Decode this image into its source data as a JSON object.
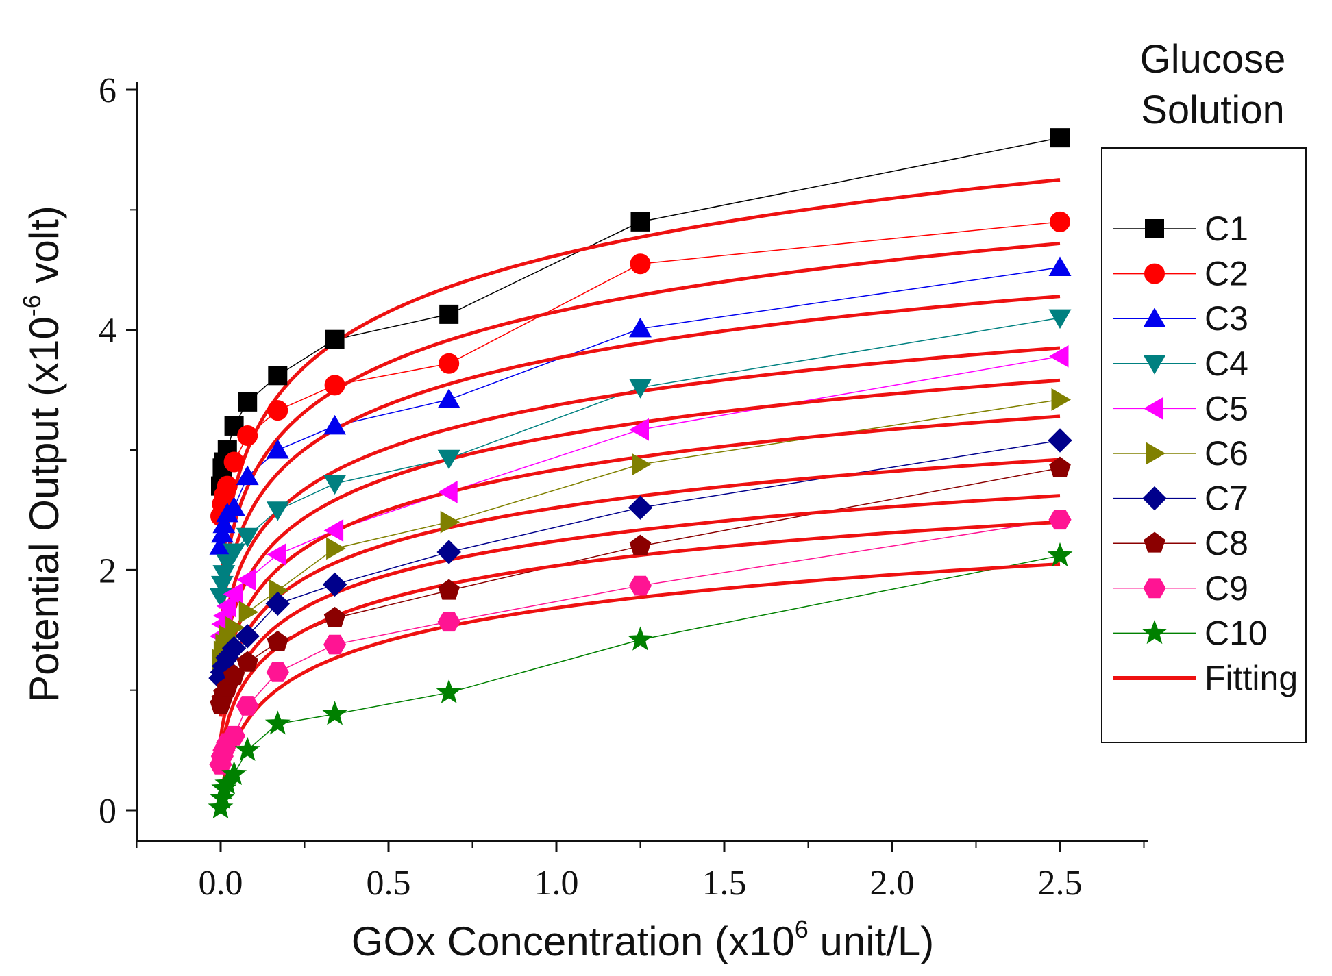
{
  "chart_data": {
    "type": "line",
    "xlabel_main": "GOx Concentration (x10",
    "xlabel_sup": "6",
    "xlabel_tail": " unit/L)",
    "ylabel_main": "Potential Output (x10",
    "ylabel_sup": "-6",
    "ylabel_tail": " volt)",
    "xlim": [
      -0.25,
      2.75
    ],
    "ylim": [
      -0.25,
      6.25
    ],
    "x_ticks": [
      0.0,
      0.5,
      1.0,
      1.5,
      2.0,
      2.5
    ],
    "x_tick_labels": [
      "0.0",
      "0.5",
      "1.0",
      "1.5",
      "2.0",
      "2.5"
    ],
    "y_ticks": [
      0,
      2,
      4,
      6
    ],
    "y_tick_labels": [
      "0",
      "2",
      "4",
      "6"
    ],
    "legend_title_line1": "Glucose",
    "legend_title_line2": "Solution",
    "legend_position": "right",
    "fitting_label": "Fitting",
    "fitting_color": "#ee1111",
    "x": [
      0.0,
      0.005,
      0.01,
      0.02,
      0.04,
      0.08,
      0.17,
      0.34,
      0.68,
      1.25,
      2.5
    ],
    "series": [
      {
        "name": "C1",
        "marker": "square",
        "color": "#000000",
        "values": [
          2.7,
          2.85,
          2.9,
          3.0,
          3.2,
          3.4,
          3.62,
          3.92,
          4.13,
          4.9,
          5.6
        ]
      },
      {
        "name": "C2",
        "marker": "circle",
        "color": "#ff0000",
        "values": [
          2.45,
          2.55,
          2.62,
          2.7,
          2.9,
          3.12,
          3.33,
          3.54,
          3.72,
          4.55,
          4.9
        ]
      },
      {
        "name": "C3",
        "marker": "triangle-up",
        "color": "#0000ee",
        "values": [
          2.2,
          2.3,
          2.38,
          2.47,
          2.52,
          2.78,
          3.0,
          3.2,
          3.42,
          4.01,
          4.52
        ]
      },
      {
        "name": "C4",
        "marker": "triangle-down",
        "color": "#008080",
        "values": [
          1.78,
          1.88,
          1.97,
          2.06,
          2.15,
          2.28,
          2.5,
          2.72,
          2.93,
          3.52,
          4.1
        ]
      },
      {
        "name": "C5",
        "marker": "triangle-left",
        "color": "#ff00ff",
        "values": [
          1.45,
          1.55,
          1.62,
          1.7,
          1.8,
          1.92,
          2.13,
          2.33,
          2.65,
          3.17,
          3.78
        ]
      },
      {
        "name": "C6",
        "marker": "triangle-right",
        "color": "#808000",
        "values": [
          1.25,
          1.32,
          1.38,
          1.45,
          1.52,
          1.65,
          1.83,
          2.18,
          2.4,
          2.88,
          3.42
        ]
      },
      {
        "name": "C7",
        "marker": "diamond",
        "color": "#00008b",
        "values": [
          1.1,
          1.15,
          1.2,
          1.27,
          1.35,
          1.45,
          1.72,
          1.88,
          2.15,
          2.52,
          3.08
        ]
      },
      {
        "name": "C8",
        "marker": "pentagon",
        "color": "#8b0000",
        "values": [
          0.88,
          0.92,
          0.97,
          1.02,
          1.12,
          1.23,
          1.4,
          1.6,
          1.83,
          2.2,
          2.85
        ]
      },
      {
        "name": "C9",
        "marker": "hexagon",
        "color": "#ff1493",
        "values": [
          0.38,
          0.45,
          0.5,
          0.56,
          0.62,
          0.87,
          1.15,
          1.38,
          1.57,
          1.87,
          2.42
        ]
      },
      {
        "name": "C10",
        "marker": "star",
        "color": "#008000",
        "values": [
          0.02,
          0.1,
          0.18,
          0.22,
          0.3,
          0.5,
          0.72,
          0.8,
          0.98,
          1.42,
          2.12
        ]
      }
    ],
    "fits": [
      {
        "y0": 1.88,
        "y_end": 5.25
      },
      {
        "y0": 1.68,
        "y_end": 4.72
      },
      {
        "y0": 1.52,
        "y_end": 4.28
      },
      {
        "y0": 1.3,
        "y_end": 3.85
      },
      {
        "y0": 1.1,
        "y_end": 3.58
      },
      {
        "y0": 0.9,
        "y_end": 3.28
      },
      {
        "y0": 0.78,
        "y_end": 2.92
      },
      {
        "y0": 0.6,
        "y_end": 2.62
      },
      {
        "y0": 0.45,
        "y_end": 2.4
      },
      {
        "y0": 0.1,
        "y_end": 2.05
      }
    ]
  }
}
